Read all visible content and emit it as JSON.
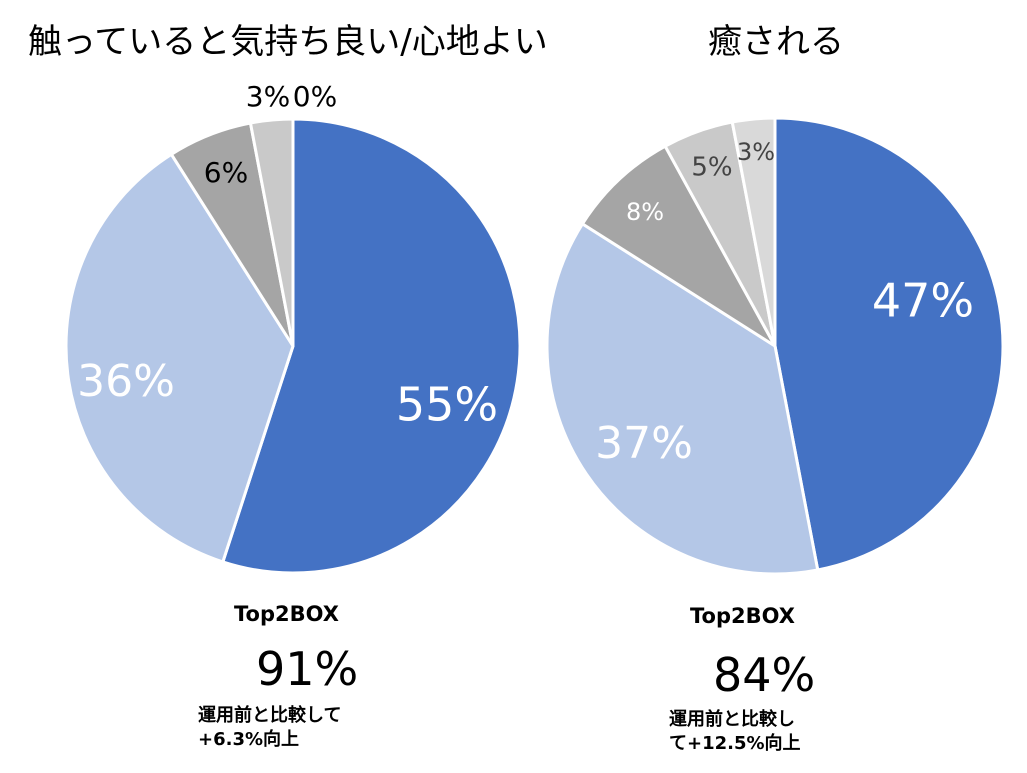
{
  "chart_data": [
    {
      "type": "pie",
      "title": "触っていると気持ち良い/心地よい",
      "categories": [
        "",
        "",
        "",
        "",
        ""
      ],
      "values": [
        55,
        36,
        6,
        3,
        0
      ],
      "labels": [
        "55%",
        "36%",
        "6%",
        "3%",
        "0%"
      ],
      "colors": [
        "#4472C4",
        "#B4C7E7",
        "#A5A5A5",
        "#C9C9C9",
        "#E0E0E0"
      ],
      "summary_label": "Top2BOX",
      "summary_value": "91%",
      "note_lines": [
        "運用前と比較して",
        "+6.3%向上"
      ]
    },
    {
      "type": "pie",
      "title": "癒される",
      "categories": [
        "",
        "",
        "",
        "",
        ""
      ],
      "values": [
        47,
        37,
        8,
        5,
        3
      ],
      "labels": [
        "47%",
        "37%",
        "8%",
        "5%",
        "3%"
      ],
      "colors": [
        "#4472C4",
        "#B4C7E7",
        "#A5A5A5",
        "#C9C9C9",
        "#D9D9D9"
      ],
      "summary_label": "Top2BOX",
      "summary_value": "84%",
      "note_lines": [
        "運用前と比較し",
        "て+12.5%向上"
      ]
    }
  ]
}
